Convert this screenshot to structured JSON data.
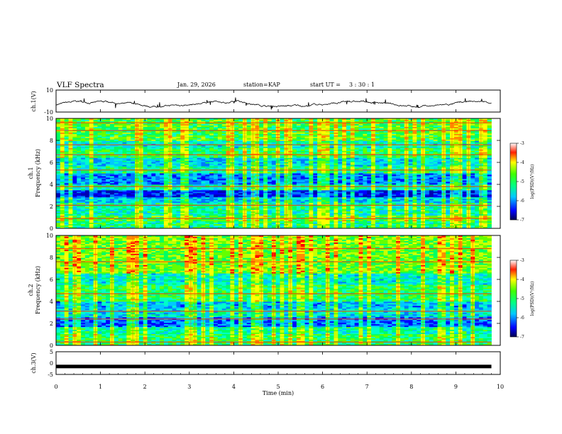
{
  "chart_data": [
    {
      "type": "line",
      "title": "VLF Spectra",
      "date": "Jan. 29, 2026",
      "station_label": "station=",
      "station": "KAP",
      "start_label": "start  UT = ",
      "start_ut": "3 : 30 : 1",
      "ylabel": "ch.1(V)",
      "ylim": [
        -10,
        10
      ],
      "yticks": [
        "10",
        "-10"
      ],
      "baseline_v": -3,
      "fluctuation_v": 3
    },
    {
      "type": "heatmap",
      "channel": "ch.1",
      "ylabel": "ch.1\nFrequency (kHz)",
      "ylabel_line1": "ch.1",
      "ylabel_line2": "Frequency  (kHz)",
      "ylim": [
        0,
        10
      ],
      "yticks": [
        "0",
        "2",
        "4",
        "6",
        "8",
        "10"
      ],
      "colorbar": {
        "label": "log(PSD)(V²/Hz)",
        "range": [
          -7,
          -3
        ],
        "ticks": [
          "-3",
          "-4",
          "-5",
          "-6",
          "-7"
        ]
      },
      "bands_khz": [
        {
          "from": 0.0,
          "to": 0.6,
          "level": 0.45
        },
        {
          "from": 0.6,
          "to": 1.2,
          "level": 0.55
        },
        {
          "from": 1.2,
          "to": 2.3,
          "level": 0.42
        },
        {
          "from": 2.3,
          "to": 2.8,
          "level": 0.3
        },
        {
          "from": 2.8,
          "to": 3.4,
          "level": 0.08
        },
        {
          "from": 3.4,
          "to": 4.0,
          "level": 0.4
        },
        {
          "from": 4.0,
          "to": 5.0,
          "level": 0.22
        },
        {
          "from": 5.0,
          "to": 5.7,
          "level": 0.45
        },
        {
          "from": 5.7,
          "to": 6.4,
          "level": 0.32
        },
        {
          "from": 6.4,
          "to": 7.3,
          "level": 0.5
        },
        {
          "from": 7.3,
          "to": 8.0,
          "level": 0.38
        },
        {
          "from": 8.0,
          "to": 10.0,
          "level": 0.55
        }
      ],
      "emission_lines_khz": [
        0.9,
        2.1,
        3.8,
        5.3,
        6.7,
        7.6,
        8.9,
        9.6
      ]
    },
    {
      "type": "heatmap",
      "channel": "ch.2",
      "ylabel_line1": "ch.2",
      "ylabel_line2": "Frequency  (kHz)",
      "ylim": [
        0,
        10
      ],
      "yticks": [
        "0",
        "2",
        "4",
        "6",
        "8",
        "10"
      ],
      "colorbar": {
        "label": "log(PSD)(V²/Hz)",
        "range": [
          -7,
          -3
        ],
        "ticks": [
          "-3",
          "-4",
          "-5",
          "-6",
          "-7"
        ]
      },
      "bands_khz": [
        {
          "from": 0.0,
          "to": 1.0,
          "level": 0.5
        },
        {
          "from": 1.0,
          "to": 1.7,
          "level": 0.42
        },
        {
          "from": 1.7,
          "to": 2.6,
          "level": 0.2
        },
        {
          "from": 2.6,
          "to": 3.3,
          "level": 0.35
        },
        {
          "from": 3.3,
          "to": 4.0,
          "level": 0.28
        },
        {
          "from": 4.0,
          "to": 5.5,
          "level": 0.5
        },
        {
          "from": 5.5,
          "to": 6.5,
          "level": 0.38
        },
        {
          "from": 6.5,
          "to": 8.4,
          "level": 0.6
        },
        {
          "from": 8.4,
          "to": 10.0,
          "level": 0.62
        }
      ],
      "emission_lines_khz": [
        0.3,
        2.4,
        3.1,
        4.7,
        7.6,
        8.8
      ]
    },
    {
      "type": "line",
      "ylabel": "ch.3(V)",
      "ylim": [
        -5,
        5
      ],
      "yticks": [
        "5",
        "0",
        "-5"
      ],
      "level_v": -1.5,
      "xlabel": "Time  (min)",
      "xlim": [
        0,
        10
      ],
      "xticks": [
        "0",
        "1",
        "2",
        "3",
        "4",
        "5",
        "6",
        "7",
        "8",
        "9",
        "10"
      ],
      "data_end_min": 9.8
    }
  ]
}
